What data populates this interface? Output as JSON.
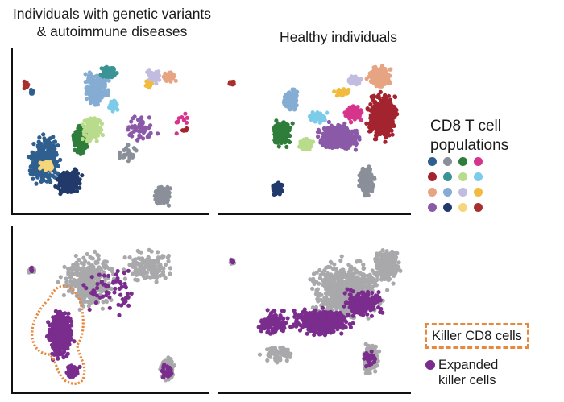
{
  "titles": {
    "left": "Individuals with genetic variants & autoimmune diseases",
    "right": "Healthy individuals"
  },
  "legend": {
    "title": "CD8 T cell populations",
    "swatches": [
      {
        "color": "#2f5f8f",
        "name": "navy-blue"
      },
      {
        "color": "#8a8f99",
        "name": "slate-gray"
      },
      {
        "color": "#2f7d3b",
        "name": "dark-green"
      },
      {
        "color": "#d6358b",
        "name": "magenta"
      },
      {
        "color": "#a3242f",
        "name": "crimson"
      },
      {
        "color": "#3a9394",
        "name": "teal"
      },
      {
        "color": "#b9dc8c",
        "name": "light-green"
      },
      {
        "color": "#7ccbe8",
        "name": "sky-blue"
      },
      {
        "color": "#e7a482",
        "name": "peach"
      },
      {
        "color": "#85acd2",
        "name": "light-blue"
      },
      {
        "color": "#c2bde0",
        "name": "lavender"
      },
      {
        "color": "#f1bb3d",
        "name": "gold"
      },
      {
        "color": "#8a5aa8",
        "name": "purple"
      },
      {
        "color": "#213a6b",
        "name": "dark-navy"
      },
      {
        "color": "#f5d67a",
        "name": "pale-yellow"
      },
      {
        "color": "#a8302c",
        "name": "brick-red"
      }
    ]
  },
  "killer_box": {
    "label": "Killer CD8 cells",
    "border_color": "#e8883a"
  },
  "expanded": {
    "label": "Expanded killer cells",
    "color": "#7b2d8e"
  },
  "background_cell_color": "#a9a9ab"
}
